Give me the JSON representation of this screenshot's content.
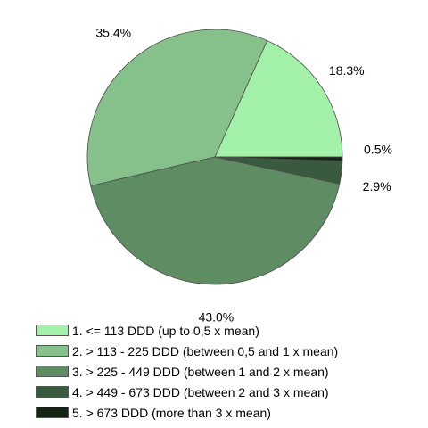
{
  "chart_data": {
    "type": "pie",
    "categories": [
      "1. <= 113 DDD (up to 0,5 x mean)",
      "2. > 113 - 225 DDD (between 0,5 and 1 x mean)",
      "3. > 225 - 449 DDD (between 1 and 2 x mean)",
      "4. > 449 - 673 DDD (between 2 and 3 x mean)",
      "5. > 673 DDD (more than 3 x mean)"
    ],
    "values": [
      18.3,
      35.4,
      43.0,
      2.9,
      0.5
    ],
    "value_labels": [
      "18.3%",
      "35.4%",
      "43.0%",
      "2.9%",
      "0.5%"
    ],
    "colors": [
      "#a3f0a9",
      "#86c18b",
      "#5e8c63",
      "#3a5a3d",
      "#142515"
    ],
    "legend_position": "bottom"
  }
}
